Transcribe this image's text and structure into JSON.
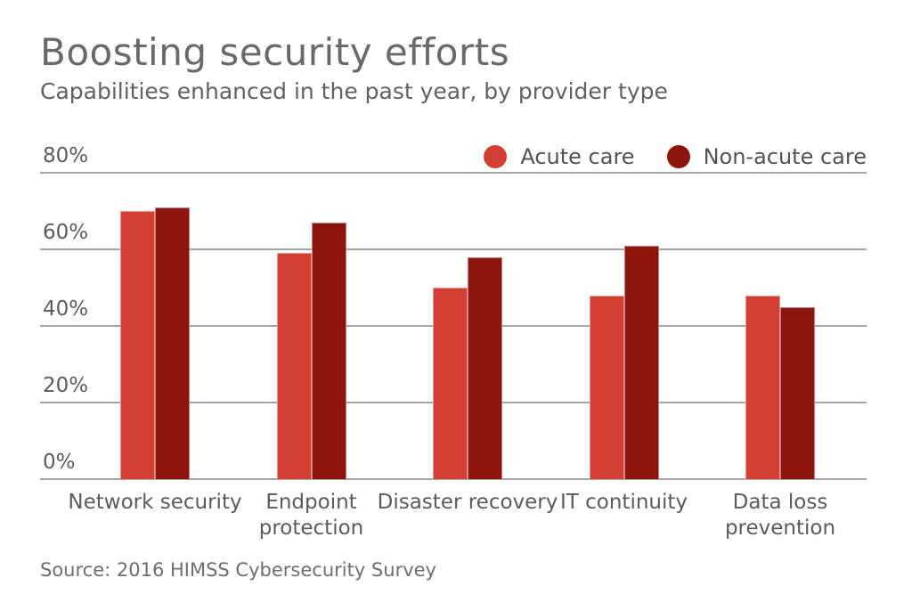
{
  "header": {
    "title": "Boosting security efforts",
    "subtitle": "Capabilities enhanced in the past year, by provider type"
  },
  "legend": {
    "items": [
      {
        "label": "Acute care",
        "color": "#D43F34"
      },
      {
        "label": "Non-acute care",
        "color": "#8E140E"
      }
    ]
  },
  "source_note": "Source: 2016 HIMSS Cybersecurity Survey",
  "colors": {
    "acute_care": "#D43F34",
    "non_acute_care": "#8E140E",
    "gridline": "#A5A5A5",
    "title_text": "#6D6868",
    "axis_text": "#5C5C5C"
  },
  "chart_data": {
    "type": "bar",
    "title": "Boosting security efforts",
    "subtitle": "Capabilities enhanced in the past year, by provider type",
    "categories": [
      "Network security",
      "Endpoint protection",
      "Disaster recovery",
      "IT continuity",
      "Data loss prevention"
    ],
    "category_label_lines": [
      [
        "Network security"
      ],
      [
        "Endpoint",
        "protection"
      ],
      [
        "Disaster recovery"
      ],
      [
        "IT continuity"
      ],
      [
        "Data loss",
        "prevention"
      ]
    ],
    "series": [
      {
        "name": "Acute care",
        "color": "#D43F34",
        "values": [
          70,
          59,
          50,
          48,
          48
        ]
      },
      {
        "name": "Non-acute care",
        "color": "#8E140E",
        "values": [
          71,
          67,
          58,
          61,
          45
        ]
      }
    ],
    "xlabel": "",
    "ylabel": "",
    "ylim": [
      0,
      80
    ],
    "ytick_step": 20,
    "ytick_labels": [
      "0%",
      "20%",
      "40%",
      "60%",
      "80%"
    ],
    "grid": true,
    "legend_position": "top-right",
    "source": "Source: 2016 HIMSS Cybersecurity Survey"
  }
}
